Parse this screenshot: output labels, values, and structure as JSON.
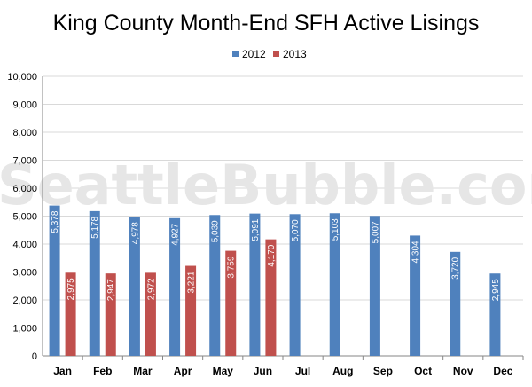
{
  "chart_data": {
    "type": "bar",
    "title": "King County Month-End SFH Active Lisings",
    "watermark": "SeattleBubble.com",
    "categories": [
      "Jan",
      "Feb",
      "Mar",
      "Apr",
      "May",
      "Jun",
      "Jul",
      "Aug",
      "Sep",
      "Oct",
      "Nov",
      "Dec"
    ],
    "series": [
      {
        "name": "2012",
        "color": "#4f81bd",
        "values": [
          5378,
          5178,
          4978,
          4927,
          5039,
          5091,
          5070,
          5103,
          5007,
          4304,
          3720,
          2945
        ],
        "labels": [
          "5,378",
          "5,178",
          "4,978",
          "4,927",
          "5,039",
          "5,091",
          "5,070",
          "5,103",
          "5,007",
          "4,304",
          "3,720",
          "2,945"
        ]
      },
      {
        "name": "2013",
        "color": "#c0504d",
        "values": [
          2975,
          2947,
          2972,
          3221,
          3759,
          4170,
          null,
          null,
          null,
          null,
          null,
          null
        ],
        "labels": [
          "2,975",
          "2,947",
          "2,972",
          "3,221",
          "3,759",
          "4,170",
          null,
          null,
          null,
          null,
          null,
          null
        ]
      }
    ],
    "ylim": [
      0,
      10000
    ],
    "yticks": [
      0,
      1000,
      2000,
      3000,
      4000,
      5000,
      6000,
      7000,
      8000,
      9000,
      10000
    ],
    "ytick_labels": [
      "0",
      "1,000",
      "2,000",
      "3,000",
      "4,000",
      "5,000",
      "6,000",
      "7,000",
      "8,000",
      "9,000",
      "10,000"
    ],
    "grid": true,
    "legend": "top-center",
    "xlabel": "",
    "ylabel": ""
  }
}
